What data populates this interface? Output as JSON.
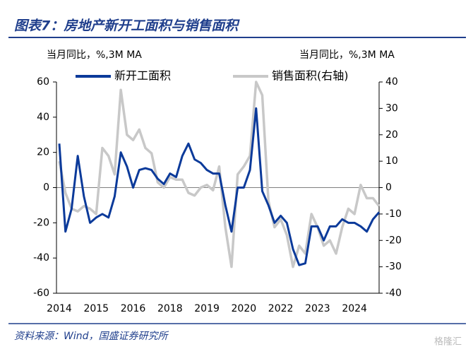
{
  "chart_data": {
    "type": "line",
    "title": "图表7：房地产新开工面积与销售面积",
    "ylabel": "当月同比，%,3M MA",
    "y2label": "当月同比，%,3M MA",
    "source": "资料来源：Wind，国盛证券研究所",
    "watermark": "格隆汇",
    "categories": [
      "2014",
      null,
      null,
      null,
      null,
      null,
      "2015",
      null,
      null,
      null,
      null,
      null,
      "2016",
      null,
      null,
      null,
      null,
      null,
      "2018",
      null,
      null,
      null,
      null,
      null,
      "2019",
      null,
      null,
      null,
      null,
      null,
      "2020",
      null,
      null,
      null,
      null,
      null,
      "2022",
      null,
      null,
      null,
      null,
      null,
      "2023",
      null,
      null,
      null,
      null,
      null,
      "2024",
      null,
      null,
      null,
      null
    ],
    "ylim": [
      -60,
      60
    ],
    "yticks": [
      -60,
      -40,
      -20,
      0,
      20,
      40,
      60
    ],
    "y2lim": [
      -40,
      40
    ],
    "y2ticks": [
      -40,
      -30,
      -20,
      -10,
      0,
      10,
      20,
      30,
      40
    ],
    "legend": "top",
    "series": [
      {
        "name": "新开工面积",
        "color": "#0b3a9a",
        "values": [
          25,
          -25,
          -12,
          18,
          -5,
          -20,
          -17,
          -15,
          -17,
          -5,
          20,
          12,
          0,
          10,
          11,
          10,
          5,
          2,
          8,
          6,
          18,
          25,
          16,
          14,
          10,
          8,
          8,
          -10,
          -25,
          0,
          0,
          10,
          45,
          -2,
          -10,
          -20,
          -16,
          -20,
          -35,
          -44,
          -43,
          -22,
          -22,
          -30,
          -22,
          -22,
          -18,
          -20,
          -20,
          -22,
          -25,
          -18,
          -14
        ]
      },
      {
        "name": "销售面积(右轴)",
        "color": "#c8c8c8",
        "axis": "y2",
        "values": [
          10,
          -2,
          -8,
          -9,
          -7,
          -8,
          -10,
          15,
          12,
          5,
          37,
          20,
          18,
          22,
          15,
          13,
          2,
          0,
          4,
          3,
          3,
          -2,
          -3,
          0,
          1,
          -1,
          8,
          -15,
          -30,
          5,
          8,
          12,
          40,
          35,
          -5,
          -15,
          -12,
          -18,
          -30,
          -22,
          -25,
          -10,
          -15,
          -22,
          -20,
          -25,
          -15,
          -8,
          -10,
          1,
          -4,
          -4,
          -7
        ]
      }
    ]
  }
}
